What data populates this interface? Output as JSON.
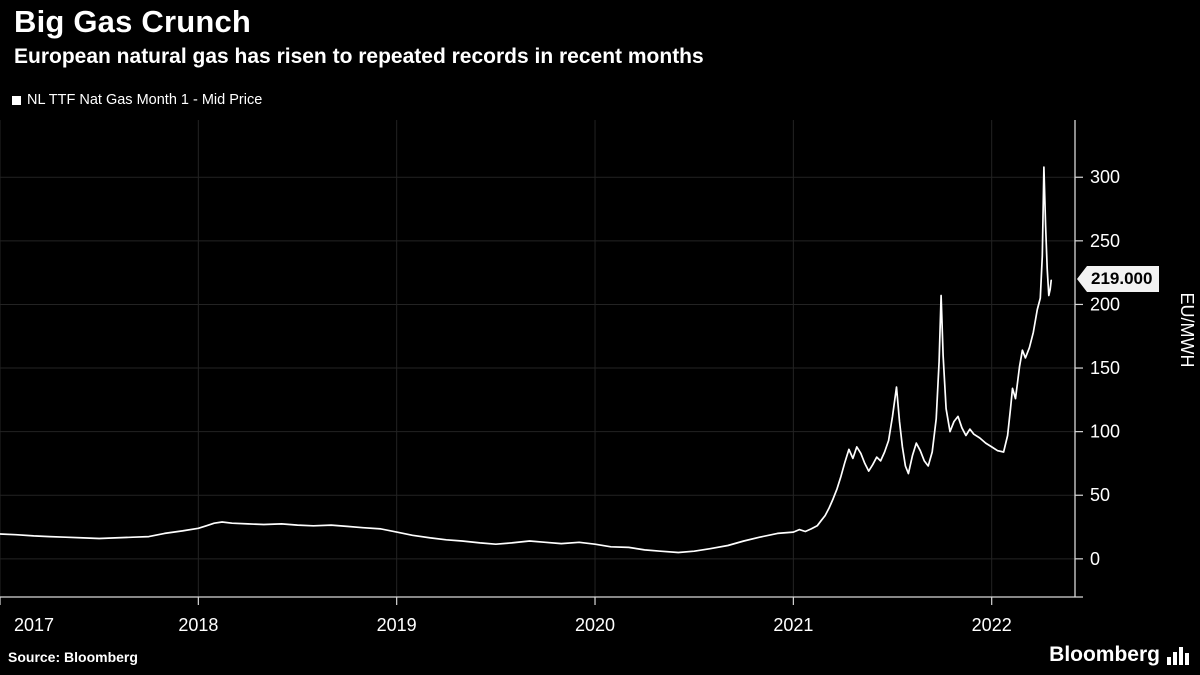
{
  "header": {
    "title": "Big Gas Crunch",
    "subtitle": "European natural gas has risen to repeated records in recent months"
  },
  "legend": {
    "label": "NL TTF Nat Gas Month 1 - Mid Price"
  },
  "price_flag": {
    "value": "219.000"
  },
  "footer": {
    "source": "Source: Bloomberg",
    "brand": "Bloomberg"
  },
  "chart_data": {
    "type": "line",
    "title": "Big Gas Crunch",
    "subtitle": "European natural gas has risen to repeated records in recent months",
    "ylabel": "EU/MWH",
    "xlabel": "",
    "xlim": [
      2017.0,
      2022.42
    ],
    "ylim": [
      -30,
      345
    ],
    "x_ticks": [
      2017,
      2018,
      2019,
      2020,
      2021,
      2022
    ],
    "x_tick_labels": [
      "2017",
      "2018",
      "2019",
      "2020",
      "2021",
      "2022"
    ],
    "y_ticks": [
      0,
      50,
      100,
      150,
      200,
      250,
      300
    ],
    "grid": true,
    "grid_color": "#232323",
    "axis_color": "#d8d8d8",
    "background": "#000000",
    "legend_position": "top-left",
    "last_value": 219.0,
    "last_value_label": "219.000",
    "series": [
      {
        "name": "NL TTF Nat Gas Month 1 - Mid Price",
        "color": "#ffffff",
        "points": [
          [
            2017.0,
            19.5
          ],
          [
            2017.08,
            19
          ],
          [
            2017.17,
            18
          ],
          [
            2017.25,
            17.5
          ],
          [
            2017.33,
            17
          ],
          [
            2017.42,
            16.5
          ],
          [
            2017.5,
            16
          ],
          [
            2017.58,
            16.5
          ],
          [
            2017.67,
            17
          ],
          [
            2017.75,
            17.5
          ],
          [
            2017.83,
            20
          ],
          [
            2017.92,
            22
          ],
          [
            2018.0,
            24
          ],
          [
            2018.04,
            26
          ],
          [
            2018.08,
            28
          ],
          [
            2018.12,
            29
          ],
          [
            2018.17,
            28
          ],
          [
            2018.25,
            27.5
          ],
          [
            2018.33,
            27
          ],
          [
            2018.42,
            27.5
          ],
          [
            2018.5,
            26.5
          ],
          [
            2018.58,
            26
          ],
          [
            2018.67,
            26.5
          ],
          [
            2018.75,
            25.5
          ],
          [
            2018.83,
            24.5
          ],
          [
            2018.92,
            23.5
          ],
          [
            2019.0,
            21
          ],
          [
            2019.08,
            18.5
          ],
          [
            2019.17,
            16.5
          ],
          [
            2019.25,
            15
          ],
          [
            2019.33,
            14
          ],
          [
            2019.42,
            12.5
          ],
          [
            2019.5,
            11.5
          ],
          [
            2019.58,
            12.5
          ],
          [
            2019.67,
            14
          ],
          [
            2019.75,
            13
          ],
          [
            2019.83,
            12
          ],
          [
            2019.92,
            13
          ],
          [
            2020.0,
            11.5
          ],
          [
            2020.08,
            9.5
          ],
          [
            2020.17,
            9
          ],
          [
            2020.25,
            7
          ],
          [
            2020.33,
            6
          ],
          [
            2020.42,
            5
          ],
          [
            2020.5,
            6
          ],
          [
            2020.58,
            8
          ],
          [
            2020.67,
            10.5
          ],
          [
            2020.75,
            14
          ],
          [
            2020.83,
            17
          ],
          [
            2020.92,
            20
          ],
          [
            2021.0,
            21
          ],
          [
            2021.03,
            23
          ],
          [
            2021.06,
            21.5
          ],
          [
            2021.09,
            23.5
          ],
          [
            2021.12,
            26
          ],
          [
            2021.14,
            30
          ],
          [
            2021.16,
            34
          ],
          [
            2021.18,
            40
          ],
          [
            2021.2,
            47
          ],
          [
            2021.22,
            55
          ],
          [
            2021.24,
            65
          ],
          [
            2021.26,
            76
          ],
          [
            2021.28,
            86
          ],
          [
            2021.3,
            79
          ],
          [
            2021.32,
            88
          ],
          [
            2021.34,
            83
          ],
          [
            2021.36,
            75
          ],
          [
            2021.38,
            69
          ],
          [
            2021.4,
            74
          ],
          [
            2021.42,
            80
          ],
          [
            2021.44,
            77
          ],
          [
            2021.46,
            84
          ],
          [
            2021.48,
            93
          ],
          [
            2021.5,
            112
          ],
          [
            2021.52,
            135
          ],
          [
            2021.535,
            108
          ],
          [
            2021.55,
            88
          ],
          [
            2021.565,
            73
          ],
          [
            2021.58,
            67
          ],
          [
            2021.6,
            81
          ],
          [
            2021.62,
            91
          ],
          [
            2021.64,
            85
          ],
          [
            2021.66,
            77
          ],
          [
            2021.68,
            73
          ],
          [
            2021.7,
            84
          ],
          [
            2021.72,
            110
          ],
          [
            2021.735,
            155
          ],
          [
            2021.745,
            207
          ],
          [
            2021.755,
            160
          ],
          [
            2021.77,
            118
          ],
          [
            2021.79,
            100
          ],
          [
            2021.81,
            108
          ],
          [
            2021.83,
            112
          ],
          [
            2021.85,
            103
          ],
          [
            2021.87,
            97
          ],
          [
            2021.89,
            102
          ],
          [
            2021.91,
            98
          ],
          [
            2021.94,
            95
          ],
          [
            2021.97,
            91
          ],
          [
            2022.0,
            88
          ],
          [
            2022.03,
            85
          ],
          [
            2022.06,
            84
          ],
          [
            2022.08,
            97
          ],
          [
            2022.095,
            118
          ],
          [
            2022.105,
            134
          ],
          [
            2022.12,
            126
          ],
          [
            2022.14,
            151
          ],
          [
            2022.155,
            164
          ],
          [
            2022.17,
            158
          ],
          [
            2022.19,
            166
          ],
          [
            2022.21,
            178
          ],
          [
            2022.23,
            196
          ],
          [
            2022.245,
            205
          ],
          [
            2022.255,
            238
          ],
          [
            2022.263,
            308
          ],
          [
            2022.272,
            262
          ],
          [
            2022.28,
            228
          ],
          [
            2022.288,
            207
          ],
          [
            2022.295,
            212
          ],
          [
            2022.3,
            219
          ]
        ]
      }
    ]
  }
}
